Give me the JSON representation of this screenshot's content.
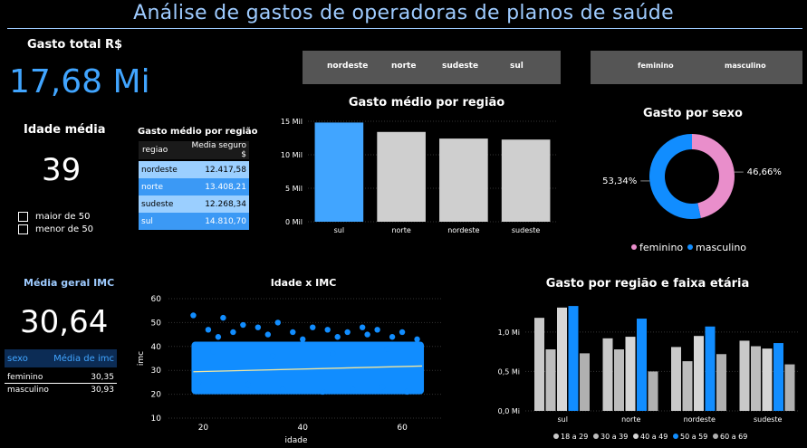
{
  "header": {
    "title": "Análise de gastos de operadoras de planos de saúde"
  },
  "kpis": {
    "total_label": "Gasto total R$",
    "total_value": "17,68 Mi",
    "age_label": "Idade média",
    "age_value": "39",
    "age_filter": [
      "maior de 50",
      "menor de 50"
    ],
    "imc_label": "Média geral IMC",
    "imc_value": "30,64"
  },
  "slicers": {
    "region": [
      "nordeste",
      "norte",
      "sudeste",
      "sul"
    ],
    "sex": [
      "feminino",
      "masculino"
    ]
  },
  "colors": {
    "blue": "#118dff",
    "light_blue": "#41a5ff",
    "grey": "#cfcfcf",
    "pink": "#e98ecb"
  },
  "region_table": {
    "title": "Gasto médio por região",
    "headers": [
      "regiao",
      "Media seguro $"
    ],
    "rows": [
      {
        "regiao": "nordeste",
        "valor": "12.417,58"
      },
      {
        "regiao": "norte",
        "valor": "13.408,21"
      },
      {
        "regiao": "sudeste",
        "valor": "12.268,34"
      },
      {
        "regiao": "sul",
        "valor": "14.810,70"
      }
    ]
  },
  "imc_table": {
    "headers": [
      "sexo",
      "Média de imc"
    ],
    "rows": [
      {
        "sexo": "feminino",
        "valor": "30,35"
      },
      {
        "sexo": "masculino",
        "valor": "30,93"
      }
    ]
  },
  "chart_data": [
    {
      "id": "bar_region",
      "type": "bar",
      "title": "Gasto médio por região",
      "categories": [
        "sul",
        "norte",
        "nordeste",
        "sudeste"
      ],
      "values": [
        14810.7,
        13408.21,
        12417.58,
        12268.34
      ],
      "highlight": "sul",
      "ylim": [
        0,
        15000
      ],
      "yticks": [
        0,
        5000,
        10000,
        15000
      ],
      "ytick_labels": [
        "0 Mil",
        "5 Mil",
        "10 Mil",
        "15 Mil"
      ],
      "xlabel": "",
      "ylabel": ""
    },
    {
      "id": "donut_sex",
      "type": "pie",
      "title": "Gasto por sexo",
      "slices": [
        {
          "name": "feminino",
          "value": 46.66,
          "label": "46,66%"
        },
        {
          "name": "masculino",
          "value": 53.34,
          "label": "53,34%"
        }
      ],
      "legend": [
        "feminino",
        "masculino"
      ]
    },
    {
      "id": "scatter_imc",
      "type": "scatter",
      "title": "Idade x IMC",
      "xlabel": "idade",
      "ylabel": "imc",
      "xlim": [
        13,
        68
      ],
      "ylim": [
        10,
        60
      ],
      "xticks": [
        20,
        40,
        60
      ],
      "yticks": [
        10,
        20,
        30,
        40,
        50,
        60
      ],
      "trend": {
        "x": [
          18,
          64
        ],
        "y": [
          29.4,
          31.8
        ]
      },
      "points": [
        [
          18,
          53
        ],
        [
          19,
          25
        ],
        [
          21,
          47
        ],
        [
          23,
          44
        ],
        [
          24,
          52
        ],
        [
          26,
          46
        ],
        [
          28,
          49
        ],
        [
          29,
          24
        ],
        [
          31,
          48
        ],
        [
          33,
          45
        ],
        [
          35,
          50
        ],
        [
          36,
          22
        ],
        [
          38,
          46
        ],
        [
          40,
          43
        ],
        [
          42,
          48
        ],
        [
          44,
          21
        ],
        [
          45,
          47
        ],
        [
          47,
          44
        ],
        [
          49,
          46
        ],
        [
          50,
          22
        ],
        [
          52,
          48
        ],
        [
          53,
          45
        ],
        [
          55,
          47
        ],
        [
          56,
          23
        ],
        [
          58,
          44
        ],
        [
          60,
          46
        ],
        [
          61,
          21
        ],
        [
          63,
          43
        ],
        [
          22,
          38
        ],
        [
          34,
          36
        ],
        [
          46,
          37
        ],
        [
          57,
          39
        ]
      ]
    },
    {
      "id": "bar_region_age",
      "type": "bar",
      "title": "Gasto por região e faixa etária",
      "categories": [
        "sul",
        "norte",
        "nordeste",
        "sudeste"
      ],
      "series": [
        {
          "name": "18 a 29",
          "values": [
            1.18,
            0.92,
            0.81,
            0.89
          ]
        },
        {
          "name": "30 a 39",
          "values": [
            0.78,
            0.78,
            0.63,
            0.82
          ]
        },
        {
          "name": "40 a 49",
          "values": [
            1.31,
            0.94,
            0.95,
            0.79
          ]
        },
        {
          "name": "50 a 59",
          "values": [
            1.33,
            1.17,
            1.07,
            0.86
          ]
        },
        {
          "name": "60 a 69",
          "values": [
            0.73,
            0.5,
            0.72,
            0.59
          ]
        }
      ],
      "ylim": [
        0,
        1.4
      ],
      "yticks": [
        0,
        0.5,
        1.0
      ],
      "ytick_labels": [
        "0,0 Mi",
        "0,5 Mi",
        "1,0 Mi"
      ],
      "xlabel": "",
      "ylabel": ""
    }
  ]
}
